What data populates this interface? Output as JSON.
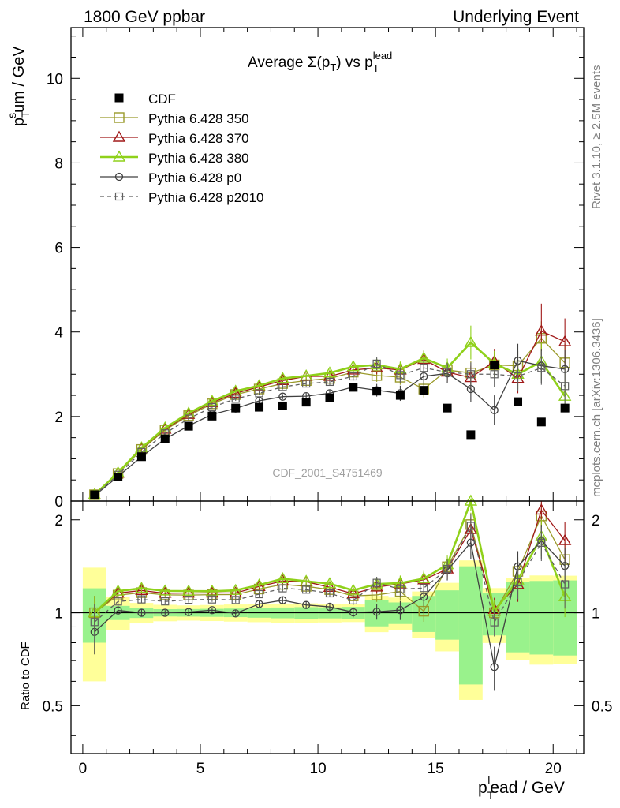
{
  "header": {
    "left": "1800 GeV ppbar",
    "right": "Underlying Event"
  },
  "side_labels": {
    "rivet": "Rivet 3.1.10, ≥ 2.5M events",
    "mcplots": "mcplots.cern.ch [arXiv:1306.3436]"
  },
  "chart_data": {
    "type": "line",
    "title": "Average Σ(p_T) vs p_T^lead",
    "analysis_tag": "CDF_2001_S4751469",
    "xlabel": "p_T^lead / GeV",
    "ylabel_main": "p_T^sum / GeV",
    "ylabel_ratio": "Ratio to CDF",
    "xlim": [
      -0.5,
      21.3
    ],
    "ylim_main": [
      0,
      11.2
    ],
    "ylim_ratio": [
      0.35,
      2.3
    ],
    "ratio_scale": "log",
    "x_ticks": [
      "0",
      "5",
      "10",
      "15",
      "20"
    ],
    "y_ticks_main": [
      "0",
      "2",
      "4",
      "6",
      "8",
      "10"
    ],
    "y_ticks_ratio": [
      "0.5",
      "1",
      "2"
    ],
    "legend_position": "top-left",
    "x": [
      0.5,
      1.5,
      2.5,
      3.5,
      4.5,
      5.5,
      6.5,
      7.5,
      8.5,
      9.5,
      10.5,
      11.5,
      12.5,
      13.5,
      14.5,
      15.5,
      16.5,
      17.5,
      18.5,
      19.5,
      20.5
    ],
    "reference": {
      "name": "CDF",
      "color": "#000000",
      "values": [
        0.15,
        0.57,
        1.05,
        1.47,
        1.77,
        2.01,
        2.2,
        2.22,
        2.25,
        2.34,
        2.44,
        2.69,
        2.6,
        2.5,
        2.62,
        2.2,
        1.57,
        3.22,
        2.35,
        1.87,
        2.2
      ],
      "band_stat": [
        0.03,
        0.03,
        0.04,
        0.04,
        0.05,
        0.06,
        0.07,
        0.08,
        0.09,
        0.1,
        0.1,
        0.12,
        0.25,
        0.2,
        0.35,
        0.4,
        0.65,
        0.5,
        0.6,
        0.5,
        0.6
      ],
      "band_total": [
        0.06,
        0.07,
        0.08,
        0.09,
        0.1,
        0.12,
        0.14,
        0.15,
        0.16,
        0.17,
        0.17,
        0.18,
        0.35,
        0.3,
        0.45,
        0.55,
        0.75,
        0.65,
        0.7,
        0.6,
        0.7
      ]
    },
    "series": [
      {
        "name": "Pythia 6.428 350",
        "color": "#9a9a2a",
        "marker": "square-open",
        "line": "solid",
        "values": [
          0.15,
          0.65,
          1.22,
          1.68,
          2.02,
          2.3,
          2.52,
          2.65,
          2.78,
          2.85,
          2.9,
          3.05,
          2.97,
          2.93,
          2.65,
          3.1,
          3.03,
          3.22,
          3.2,
          3.85,
          3.27
        ],
        "errors": [
          0.02,
          0.02,
          0.03,
          0.03,
          0.04,
          0.04,
          0.05,
          0.05,
          0.06,
          0.07,
          0.08,
          0.1,
          0.15,
          0.18,
          0.2,
          0.22,
          0.28,
          0.3,
          0.35,
          0.4,
          0.45
        ]
      },
      {
        "name": "Pythia 6.428 370",
        "color": "#a01818",
        "marker": "triangle-open",
        "line": "solid",
        "values": [
          0.15,
          0.66,
          1.24,
          1.7,
          2.05,
          2.33,
          2.55,
          2.7,
          2.85,
          2.95,
          2.95,
          3.1,
          3.15,
          3.1,
          3.35,
          3.05,
          2.92,
          3.3,
          2.9,
          4.02,
          3.77
        ],
        "errors": [
          0.02,
          0.02,
          0.03,
          0.03,
          0.04,
          0.04,
          0.05,
          0.05,
          0.06,
          0.07,
          0.08,
          0.1,
          0.15,
          0.18,
          0.2,
          0.22,
          0.28,
          0.3,
          0.35,
          0.65,
          0.55
        ]
      },
      {
        "name": "Pythia 6.428 380",
        "color": "#8fd11a",
        "marker": "triangle-open",
        "line": "solid-thick",
        "values": [
          0.15,
          0.67,
          1.26,
          1.73,
          2.08,
          2.36,
          2.6,
          2.73,
          2.9,
          2.96,
          3.03,
          3.18,
          3.22,
          3.12,
          3.38,
          3.15,
          3.75,
          3.25,
          3.0,
          3.3,
          2.48
        ],
        "errors": [
          0.02,
          0.02,
          0.03,
          0.03,
          0.04,
          0.04,
          0.05,
          0.05,
          0.06,
          0.07,
          0.08,
          0.1,
          0.15,
          0.18,
          0.2,
          0.22,
          0.4,
          0.3,
          0.35,
          0.45,
          0.35
        ]
      },
      {
        "name": "Pythia 6.428 p0",
        "color": "#404040",
        "marker": "circle-open",
        "line": "solid",
        "values": [
          0.13,
          0.58,
          1.05,
          1.47,
          1.78,
          2.05,
          2.19,
          2.37,
          2.47,
          2.48,
          2.55,
          2.7,
          2.62,
          2.55,
          2.95,
          3.02,
          2.65,
          2.15,
          3.32,
          3.2,
          3.12
        ],
        "errors": [
          0.02,
          0.02,
          0.03,
          0.03,
          0.04,
          0.04,
          0.05,
          0.05,
          0.06,
          0.07,
          0.08,
          0.1,
          0.15,
          0.18,
          0.2,
          0.22,
          0.3,
          0.35,
          0.4,
          0.4,
          0.45
        ]
      },
      {
        "name": "Pythia 6.428 p2010",
        "color": "#606060",
        "marker": "square-open-small",
        "line": "dashed",
        "values": [
          0.14,
          0.62,
          1.16,
          1.6,
          1.95,
          2.22,
          2.42,
          2.55,
          2.7,
          2.78,
          2.82,
          2.95,
          3.25,
          2.98,
          3.15,
          3.05,
          3.0,
          3.0,
          2.95,
          3.15,
          2.72
        ],
        "errors": [
          0.02,
          0.02,
          0.03,
          0.03,
          0.04,
          0.04,
          0.05,
          0.05,
          0.06,
          0.07,
          0.08,
          0.1,
          0.15,
          0.18,
          0.2,
          0.22,
          0.28,
          0.3,
          0.35,
          0.4,
          0.45
        ]
      }
    ]
  }
}
